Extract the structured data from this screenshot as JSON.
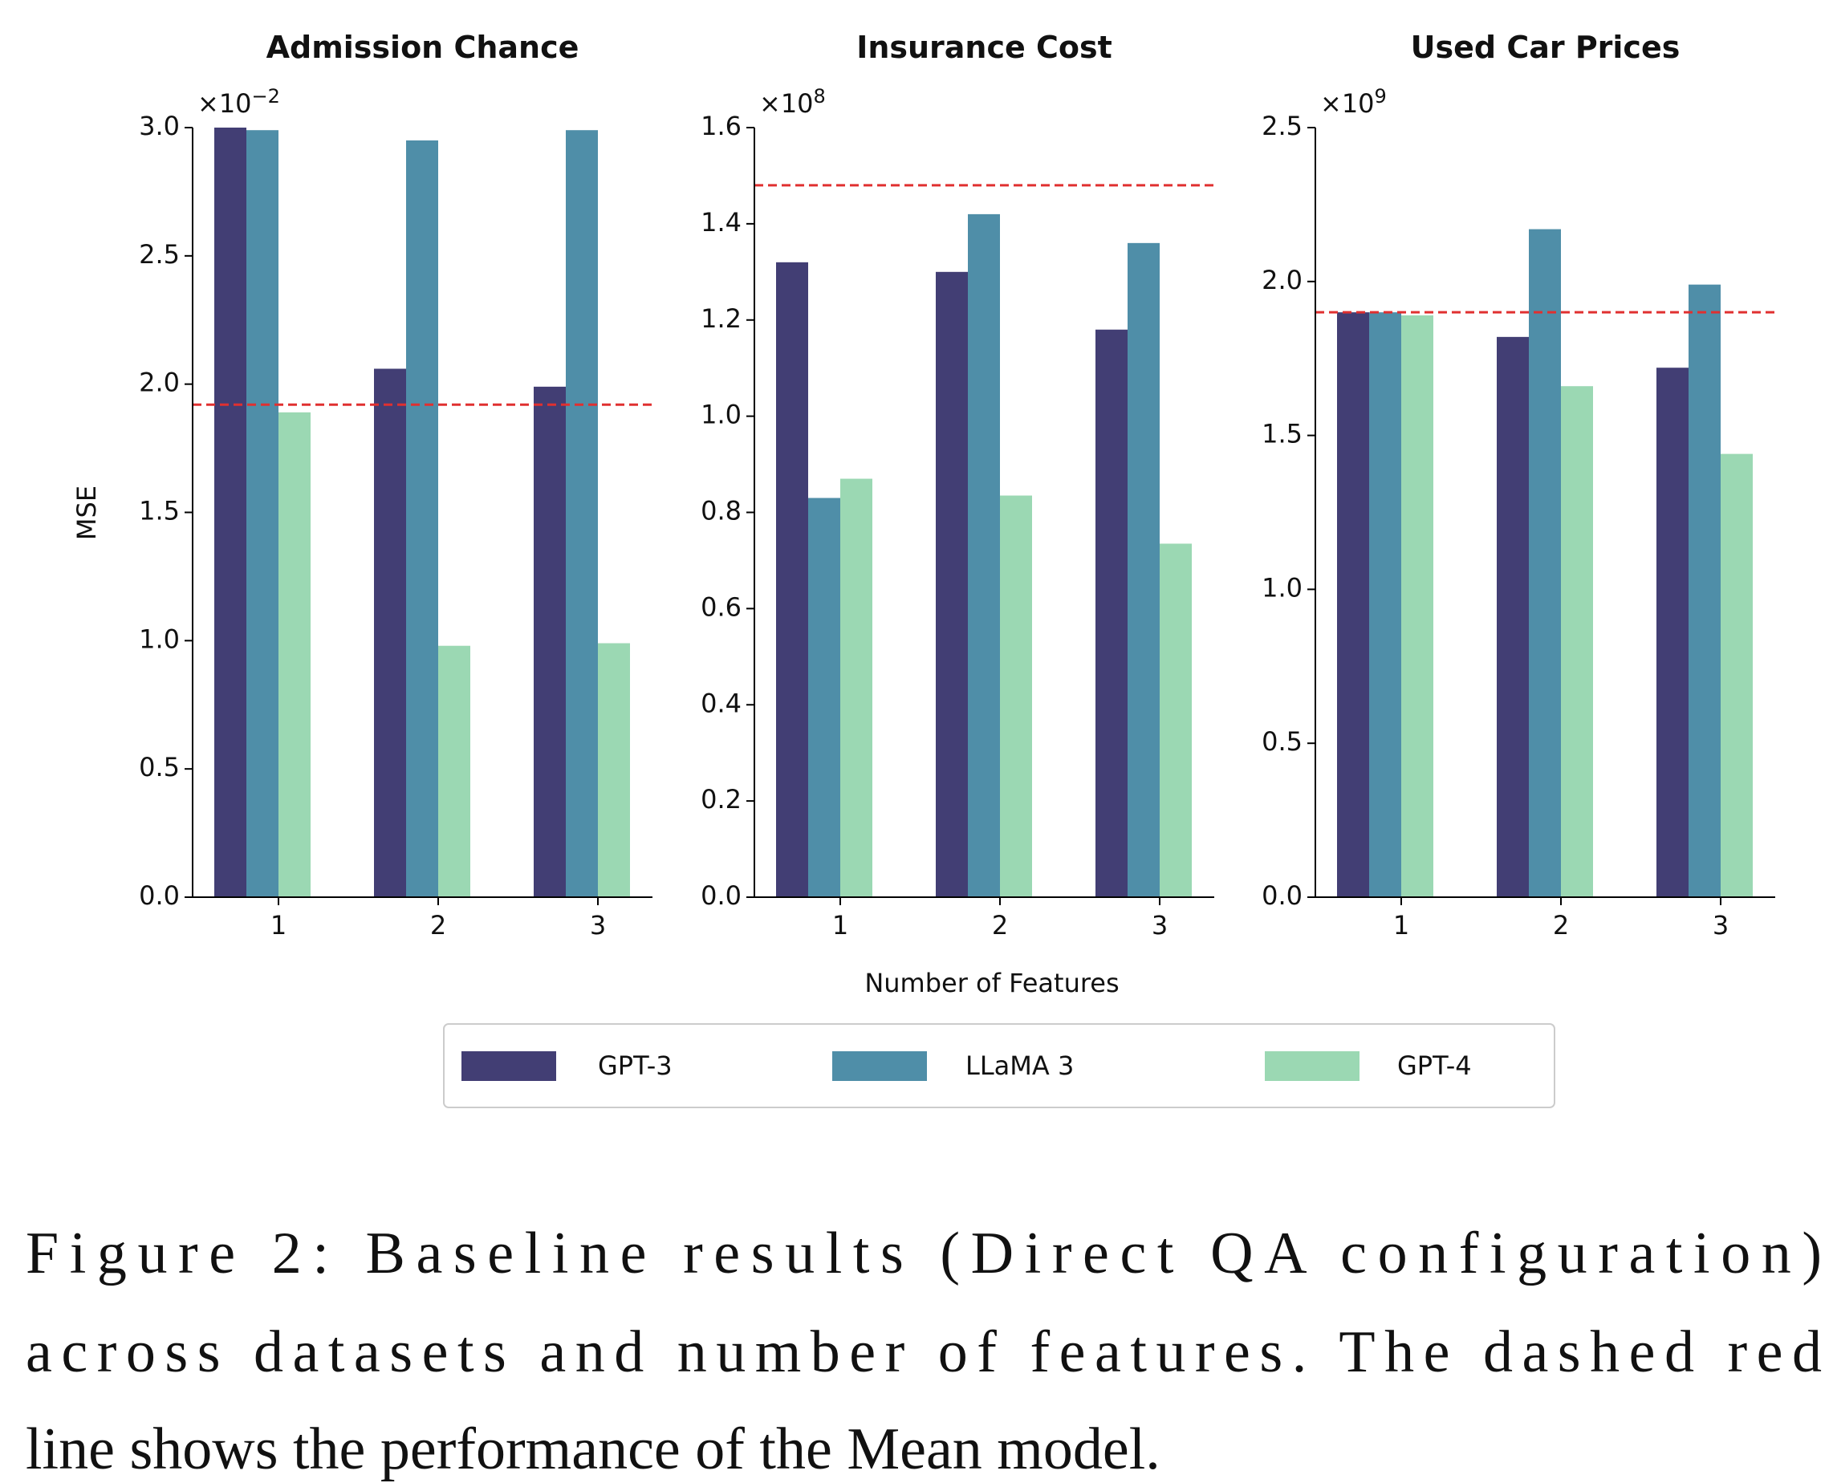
{
  "chart_data": [
    {
      "type": "bar",
      "title": "Admission Chance",
      "y_label": "MSE",
      "offset": {
        "base": "×10",
        "exponent": "−2"
      },
      "categories": [
        "1",
        "2",
        "3"
      ],
      "series": [
        {
          "name": "GPT-3",
          "color": "#423e74",
          "values": [
            3.0,
            2.06,
            1.99
          ]
        },
        {
          "name": "LLaMA 3",
          "color": "#4f8ea8",
          "values": [
            2.99,
            2.95,
            2.99
          ]
        },
        {
          "name": "GPT-4",
          "color": "#9bd8b3",
          "values": [
            1.89,
            0.98,
            0.99
          ]
        }
      ],
      "mean_line": {
        "value": 1.92,
        "color": "#e03030"
      },
      "ylim": [
        0,
        3.0
      ],
      "yticks": [
        {
          "value": 0,
          "label": "0.0"
        },
        {
          "value": 0.5,
          "label": "0.5"
        },
        {
          "value": 1,
          "label": "1.0"
        },
        {
          "value": 1.5,
          "label": "1.5"
        },
        {
          "value": 2,
          "label": "2.0"
        },
        {
          "value": 2.5,
          "label": "2.5"
        },
        {
          "value": 3,
          "label": "3.0"
        }
      ]
    },
    {
      "type": "bar",
      "title": "Insurance Cost",
      "x_label": "Number of Features",
      "offset": {
        "base": "×10",
        "exponent": "8"
      },
      "categories": [
        "1",
        "2",
        "3"
      ],
      "series": [
        {
          "color": "#423e74",
          "values": [
            1.32,
            1.3,
            1.18
          ]
        },
        {
          "color": "#4f8ea8",
          "values": [
            0.83,
            1.42,
            1.36
          ]
        },
        {
          "color": "#9bd8b3",
          "values": [
            0.87,
            0.835,
            0.735
          ]
        }
      ],
      "mean_line": {
        "value": 1.48,
        "color": "#e03030"
      },
      "ylim": [
        0,
        1.6
      ],
      "yticks": [
        {
          "value": 0,
          "label": "0.0"
        },
        {
          "value": 0.2,
          "label": "0.2"
        },
        {
          "value": 0.4,
          "label": "0.4"
        },
        {
          "value": 0.6,
          "label": "0.6"
        },
        {
          "value": 0.8,
          "label": "0.8"
        },
        {
          "value": 1,
          "label": "1.0"
        },
        {
          "value": 1.2,
          "label": "1.2"
        },
        {
          "value": 1.4,
          "label": "1.4"
        },
        {
          "value": 1.6,
          "label": "1.6"
        }
      ]
    },
    {
      "type": "bar",
      "title": "Used Car Prices",
      "offset": {
        "base": "×10",
        "exponent": "9"
      },
      "categories": [
        "1",
        "2",
        "3"
      ],
      "series": [
        {
          "color": "#423e74",
          "values": [
            1.9,
            1.82,
            1.72
          ]
        },
        {
          "color": "#4f8ea8",
          "values": [
            1.9,
            2.17,
            1.99
          ]
        },
        {
          "color": "#9bd8b3",
          "values": [
            1.89,
            1.66,
            1.44
          ]
        }
      ],
      "mean_line": {
        "value": 1.9,
        "color": "#e03030"
      },
      "ylim": [
        0,
        2.5
      ],
      "yticks": [
        {
          "value": 0,
          "label": "0.0"
        },
        {
          "value": 0.5,
          "label": "0.5"
        },
        {
          "value": 1,
          "label": "1.0"
        },
        {
          "value": 1.5,
          "label": "1.5"
        },
        {
          "value": 2,
          "label": "2.0"
        },
        {
          "value": 2.5,
          "label": "2.5"
        }
      ]
    }
  ],
  "caption": [
    "Figure 2:  Baseline results (Direct QA configuration)",
    "across datasets and number of features. The dashed red",
    "line shows the performance of the Mean model."
  ]
}
